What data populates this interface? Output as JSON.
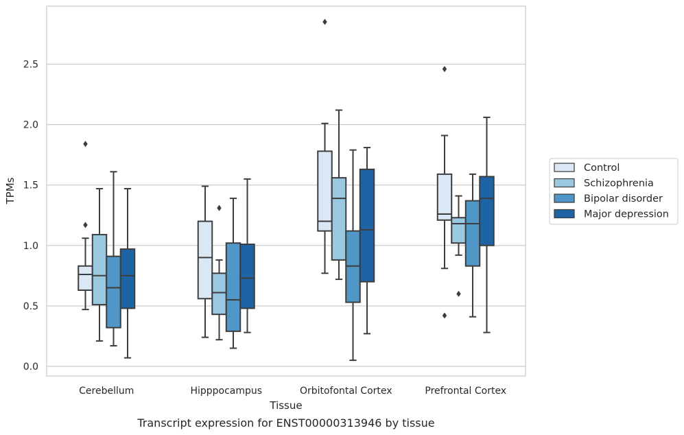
{
  "chart_data": {
    "type": "box",
    "caption": "Transcript expression for ENST00000313946 by tissue",
    "xlabel": "Tissue",
    "ylabel": "TPMs",
    "ylim": [
      -0.08,
      2.98
    ],
    "yticks": [
      0.0,
      0.5,
      1.0,
      1.5,
      2.0,
      2.5
    ],
    "ytick_labels": [
      "0.0",
      "0.5",
      "1.0",
      "1.5",
      "2.0",
      "2.5"
    ],
    "grid": "horizontal",
    "legend_position": "right",
    "categories": [
      "Cerebellum",
      "Hipppocampus",
      "Orbitofontal Cortex",
      "Prefrontal Cortex"
    ],
    "series": [
      {
        "name": "Control",
        "color": "#dae8f5",
        "boxes": [
          {
            "whisker_low": 0.47,
            "q1": 0.63,
            "median": 0.76,
            "q3": 0.83,
            "whisker_high": 1.06,
            "outliers": [
              1.17,
              1.84
            ]
          },
          {
            "whisker_low": 0.24,
            "q1": 0.56,
            "median": 0.9,
            "q3": 1.2,
            "whisker_high": 1.49,
            "outliers": []
          },
          {
            "whisker_low": 0.77,
            "q1": 1.12,
            "median": 1.2,
            "q3": 1.78,
            "whisker_high": 2.01,
            "outliers": [
              2.85
            ]
          },
          {
            "whisker_low": 0.81,
            "q1": 1.21,
            "median": 1.26,
            "q3": 1.59,
            "whisker_high": 1.91,
            "outliers": [
              0.42,
              2.46
            ]
          }
        ]
      },
      {
        "name": "Schizophrenia",
        "color": "#9ac8e0",
        "boxes": [
          {
            "whisker_low": 0.21,
            "q1": 0.51,
            "median": 0.75,
            "q3": 1.09,
            "whisker_high": 1.47,
            "outliers": []
          },
          {
            "whisker_low": 0.22,
            "q1": 0.43,
            "median": 0.61,
            "q3": 0.77,
            "whisker_high": 0.88,
            "outliers": [
              1.31
            ]
          },
          {
            "whisker_low": 0.72,
            "q1": 0.88,
            "median": 1.39,
            "q3": 1.56,
            "whisker_high": 2.12,
            "outliers": []
          },
          {
            "whisker_low": 0.92,
            "q1": 1.02,
            "median": 1.18,
            "q3": 1.23,
            "whisker_high": 1.41,
            "outliers": [
              0.6
            ]
          }
        ]
      },
      {
        "name": "Bipolar disorder",
        "color": "#5097c7",
        "boxes": [
          {
            "whisker_low": 0.17,
            "q1": 0.32,
            "median": 0.65,
            "q3": 0.91,
            "whisker_high": 1.61,
            "outliers": []
          },
          {
            "whisker_low": 0.15,
            "q1": 0.29,
            "median": 0.55,
            "q3": 1.02,
            "whisker_high": 1.39,
            "outliers": []
          },
          {
            "whisker_low": 0.05,
            "q1": 0.53,
            "median": 0.83,
            "q3": 1.12,
            "whisker_high": 1.79,
            "outliers": []
          },
          {
            "whisker_low": 0.41,
            "q1": 0.83,
            "median": 1.18,
            "q3": 1.37,
            "whisker_high": 1.59,
            "outliers": []
          }
        ]
      },
      {
        "name": "Major depression",
        "color": "#1e63a4",
        "boxes": [
          {
            "whisker_low": 0.07,
            "q1": 0.48,
            "median": 0.75,
            "q3": 0.97,
            "whisker_high": 1.47,
            "outliers": []
          },
          {
            "whisker_low": 0.28,
            "q1": 0.48,
            "median": 0.73,
            "q3": 1.01,
            "whisker_high": 1.55,
            "outliers": []
          },
          {
            "whisker_low": 0.27,
            "q1": 0.7,
            "median": 1.13,
            "q3": 1.63,
            "whisker_high": 1.81,
            "outliers": []
          },
          {
            "whisker_low": 0.28,
            "q1": 1.0,
            "median": 1.39,
            "q3": 1.57,
            "whisker_high": 2.06,
            "outliers": []
          }
        ]
      }
    ]
  },
  "style": {
    "grid_color": "#cccccc",
    "frame_color": "#cccccc",
    "line_color": "#3d3d3d",
    "text_color": "#262626"
  }
}
